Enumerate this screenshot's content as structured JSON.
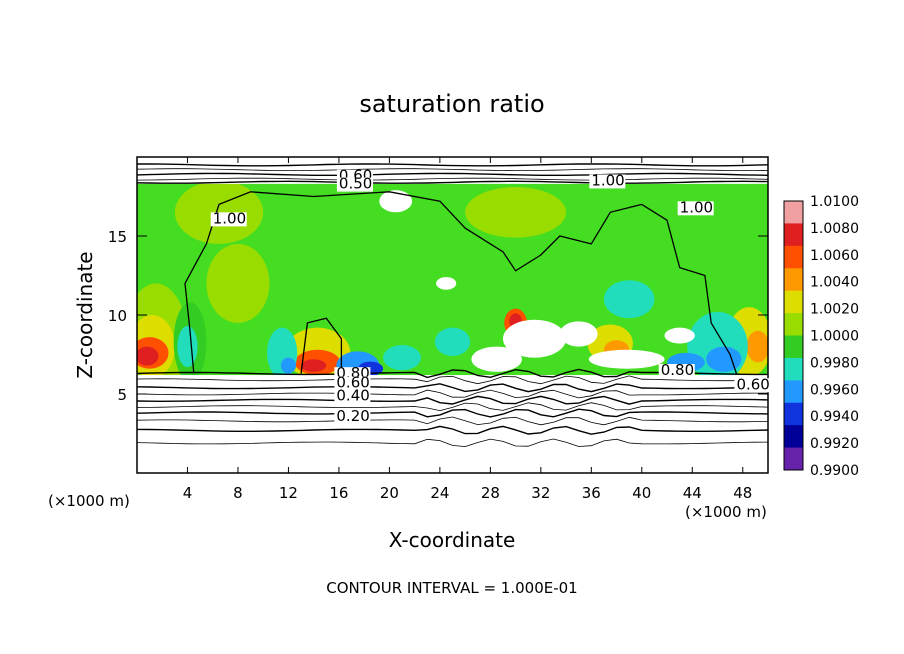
{
  "chart_data": {
    "type": "heatmap",
    "title": "saturation ratio",
    "xlabel": "X-coordinate",
    "ylabel": "Z-coordinate",
    "x_unit_left": "(×1000 m)",
    "x_unit_right": "(×1000 m)",
    "xlim": [
      0,
      50
    ],
    "ylim": [
      0,
      20
    ],
    "x_ticks": [
      4,
      8,
      12,
      16,
      20,
      24,
      28,
      32,
      36,
      40,
      44,
      48
    ],
    "y_ticks": [
      5,
      10,
      15
    ],
    "footer": "CONTOUR INTERVAL = 1.000E-01",
    "colorbar": {
      "levels": [
        "1.0100",
        "1.0080",
        "1.0060",
        "1.0040",
        "1.0020",
        "1.0000",
        "0.9980",
        "0.9960",
        "0.9940",
        "0.9920",
        "0.9900"
      ],
      "colors": [
        "#f0a0a0",
        "#e02020",
        "#ff5000",
        "#ff9900",
        "#dddd00",
        "#99dd00",
        "#33cc22",
        "#22ddbb",
        "#2299ff",
        "#1133dd",
        "#000099",
        "#6622aa"
      ]
    },
    "contour_labels": [
      {
        "text": "0.60",
        "x": 16.0,
        "y": 18.5
      },
      {
        "text": "0.50",
        "x": 16.0,
        "y": 18.0
      },
      {
        "text": "1.00",
        "x": 36.0,
        "y": 18.2
      },
      {
        "text": "1.00",
        "x": 6.0,
        "y": 15.8
      },
      {
        "text": "1.00",
        "x": 43.0,
        "y": 16.5
      },
      {
        "text": "0.80",
        "x": 15.8,
        "y": 6.0
      },
      {
        "text": "0.60",
        "x": 15.8,
        "y": 5.4
      },
      {
        "text": "0.40",
        "x": 15.8,
        "y": 4.6
      },
      {
        "text": "0.20",
        "x": 15.8,
        "y": 3.3
      },
      {
        "text": "0.80",
        "x": 41.5,
        "y": 6.2
      },
      {
        "text": "0.60",
        "x": 47.5,
        "y": 5.3
      }
    ]
  }
}
